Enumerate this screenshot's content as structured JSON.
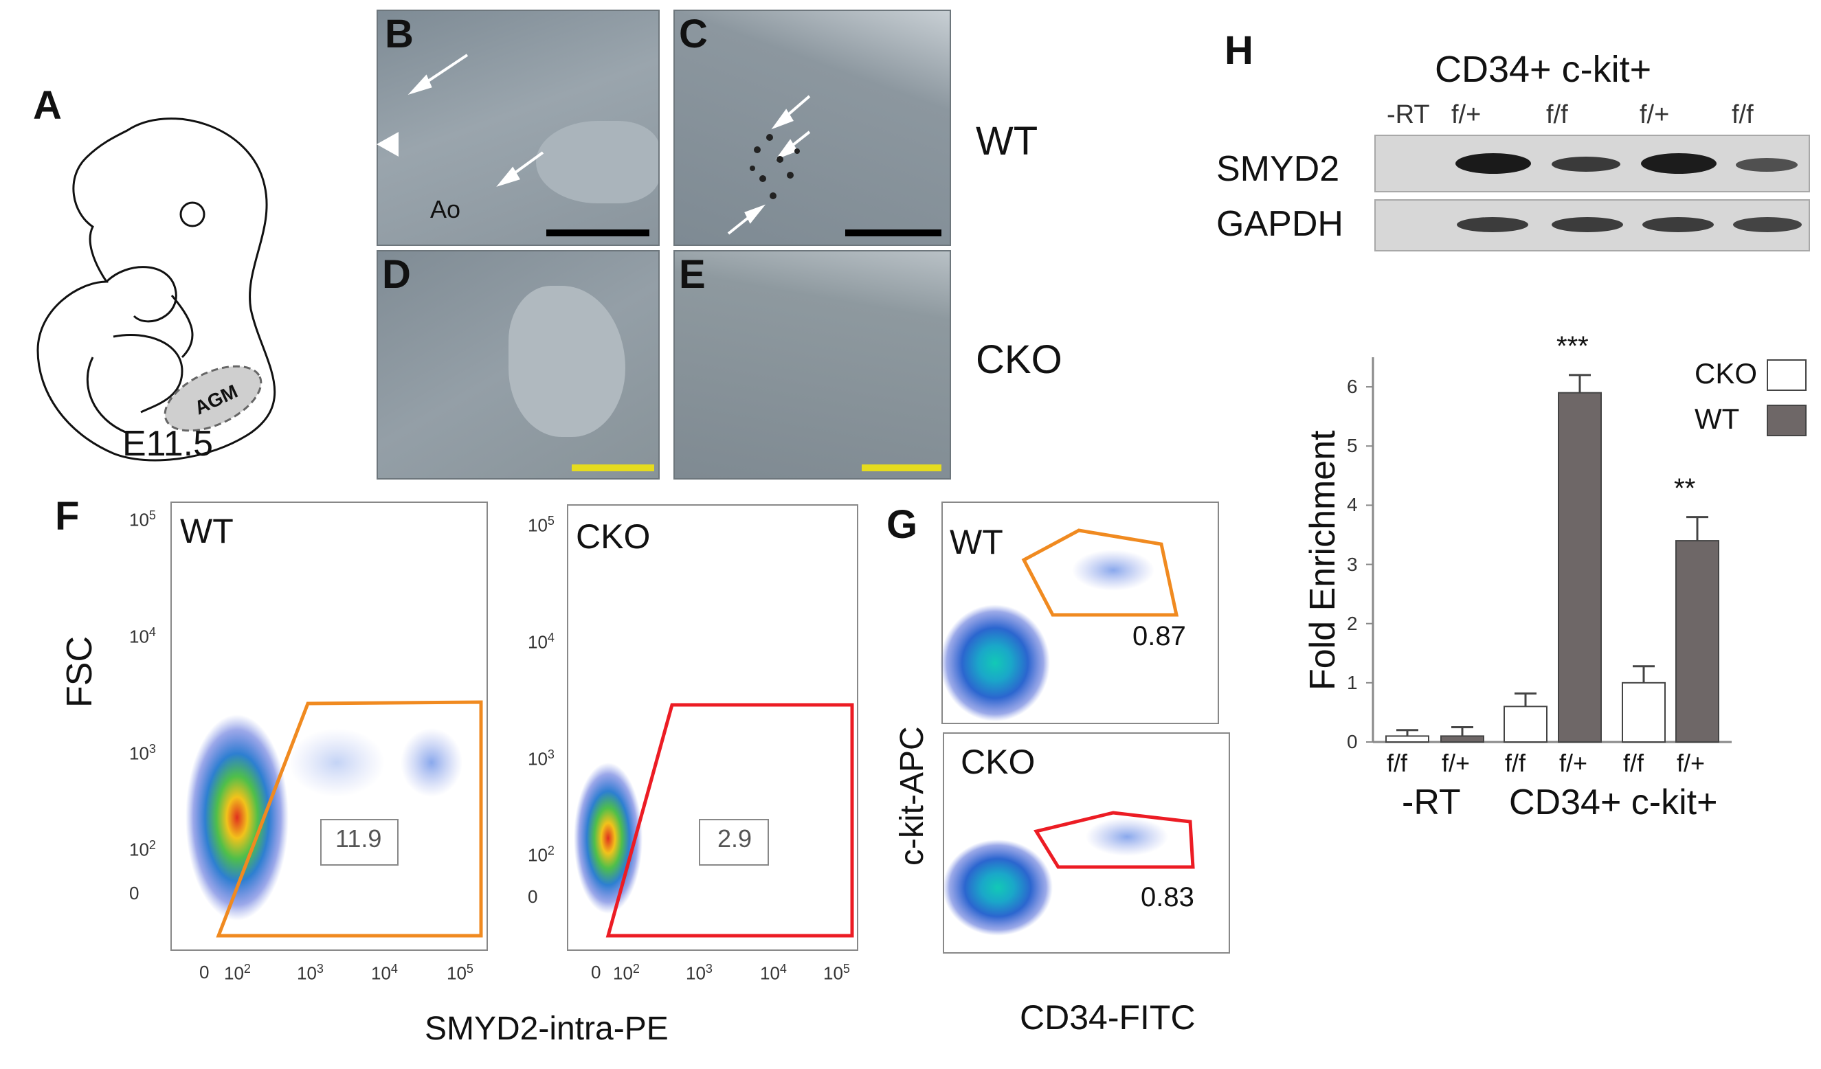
{
  "panel_labels": {
    "a": "A",
    "b": "B",
    "c": "C",
    "d": "D",
    "e": "E",
    "f": "F",
    "g": "G",
    "h": "H"
  },
  "panel_a": {
    "region_label": "AGM",
    "stage_label": "E11.5"
  },
  "micrographs": {
    "b_vessel_label": "Ao",
    "row_wt_label": "WT",
    "row_cko_label": "CKO",
    "scalebar_colors": {
      "wt": "#000000",
      "cko": "#e6dc1e"
    }
  },
  "panel_f": {
    "y_axis_label": "FSC",
    "x_axis_label": "SMYD2-intra-PE",
    "plots": [
      {
        "name": "WT",
        "gate_value": "11.9",
        "gate_color": "#f08a20"
      },
      {
        "name": "CKO",
        "gate_value": "2.9",
        "gate_color": "#ec1c24"
      }
    ],
    "y_ticks": [
      "10",
      "10",
      "10",
      "10",
      "0"
    ],
    "y_tick_exp": [
      "5",
      "4",
      "3",
      "2",
      ""
    ],
    "x_ticks": [
      "0",
      "10",
      "10",
      "10",
      "10"
    ],
    "x_tick_exp": [
      "",
      "2",
      "3",
      "4",
      "5"
    ]
  },
  "panel_g": {
    "y_axis_label": "c-kit-APC",
    "x_axis_label": "CD34-FITC",
    "plots": [
      {
        "name": "WT",
        "gate_value": "0.87",
        "gate_color": "#f08a20"
      },
      {
        "name": "CKO",
        "gate_value": "0.83",
        "gate_color": "#ec1c24"
      }
    ]
  },
  "panel_h": {
    "header": "CD34+ c-kit+",
    "lanes": [
      "-RT",
      "f/+",
      "f/f",
      "f/+",
      "f/f"
    ],
    "rows": [
      "SMYD2",
      "GAPDH"
    ]
  },
  "chart_data": {
    "type": "bar",
    "ylabel": "Fold Enrichment",
    "ylim": [
      0,
      6.5
    ],
    "y_ticks": [
      0,
      1,
      2,
      3,
      4,
      5,
      6
    ],
    "categories": [
      "f/f",
      "f/+",
      "f/f",
      "f/+",
      "f/f",
      "f/+"
    ],
    "group_labels": [
      "-RT",
      "CD34+ c-kit+"
    ],
    "values": [
      0.1,
      0.1,
      0.6,
      5.9,
      1.0,
      3.4
    ],
    "errors": [
      0.1,
      0.15,
      0.22,
      0.3,
      0.28,
      0.4
    ],
    "bar_colors": [
      "#ffffff",
      "#6e6767",
      "#ffffff",
      "#6e6767",
      "#ffffff",
      "#6e6767"
    ],
    "significance": [
      "",
      "",
      "",
      "***",
      "",
      "**"
    ],
    "legend": [
      {
        "name": "CKO",
        "color": "#ffffff"
      },
      {
        "name": "WT",
        "color": "#6e6767"
      }
    ],
    "legend_position": "top-right"
  }
}
